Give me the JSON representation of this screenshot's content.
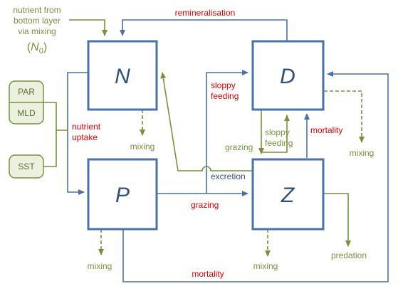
{
  "colors": {
    "blue": "#4a72a6",
    "blue_dark": "#3b5f8c",
    "green": "#76923c",
    "green_fill": "#ebf1de",
    "red": "#e00000",
    "letter": "#2f4f7f"
  },
  "boxes": {
    "N": "N",
    "D": "D",
    "P": "P",
    "Z": "Z"
  },
  "inputs": {
    "par": "PAR",
    "mld": "MLD",
    "sst": "SST"
  },
  "labels": {
    "nutrient_line1": "nutrient from",
    "nutrient_line2": "bottom layer",
    "nutrient_line3": "via mixing",
    "n0_open": "(",
    "n0_letter": "N",
    "n0_sub": "0",
    "n0_close": ")",
    "remineralisation": "remineralisation",
    "nutrient_uptake_1": "nutrient",
    "nutrient_uptake_2": "uptake",
    "sloppy_feeding_red_1": "sloppy",
    "sloppy_feeding_red_2": "feeding",
    "sloppy_feeding_green_1": "sloppy",
    "sloppy_feeding_green_2": "feeding",
    "grazing_green": "grazing",
    "grazing_red": "grazing",
    "excretion": "excretion",
    "mortality_top": "mortality",
    "mortality_bottom": "mortality",
    "mixing_n": "mixing",
    "mixing_d": "mixing",
    "mixing_p": "mixing",
    "mixing_z": "mixing",
    "predation": "predation"
  }
}
